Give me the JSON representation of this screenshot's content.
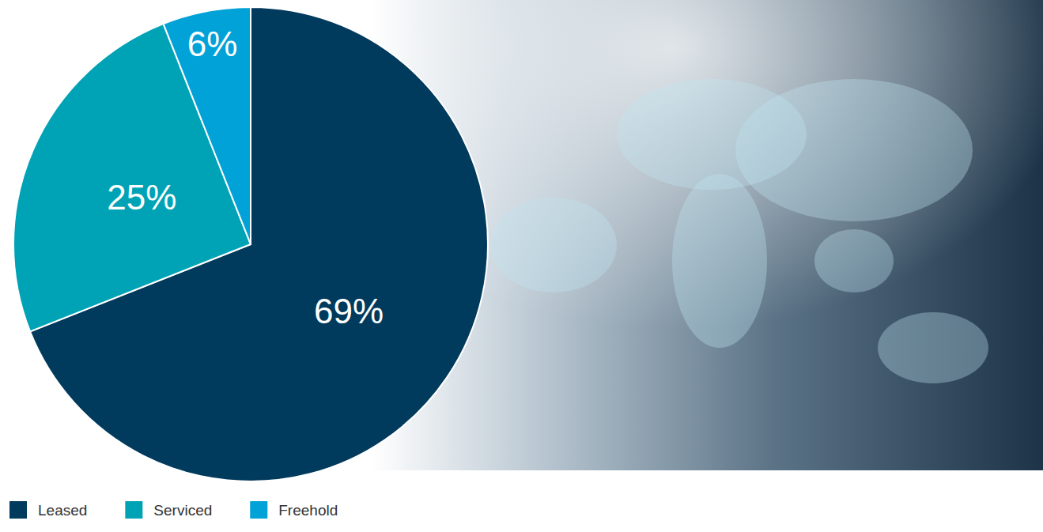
{
  "chart_data": {
    "type": "pie",
    "categories": [
      "Leased",
      "Serviced",
      "Freehold"
    ],
    "values": [
      69,
      25,
      6
    ],
    "value_labels": [
      "69%",
      "25%",
      "6%"
    ],
    "colors": [
      "#003a5c",
      "#00a3b5",
      "#00a2d8"
    ],
    "data_labels": true,
    "legend": "bottom"
  }
}
